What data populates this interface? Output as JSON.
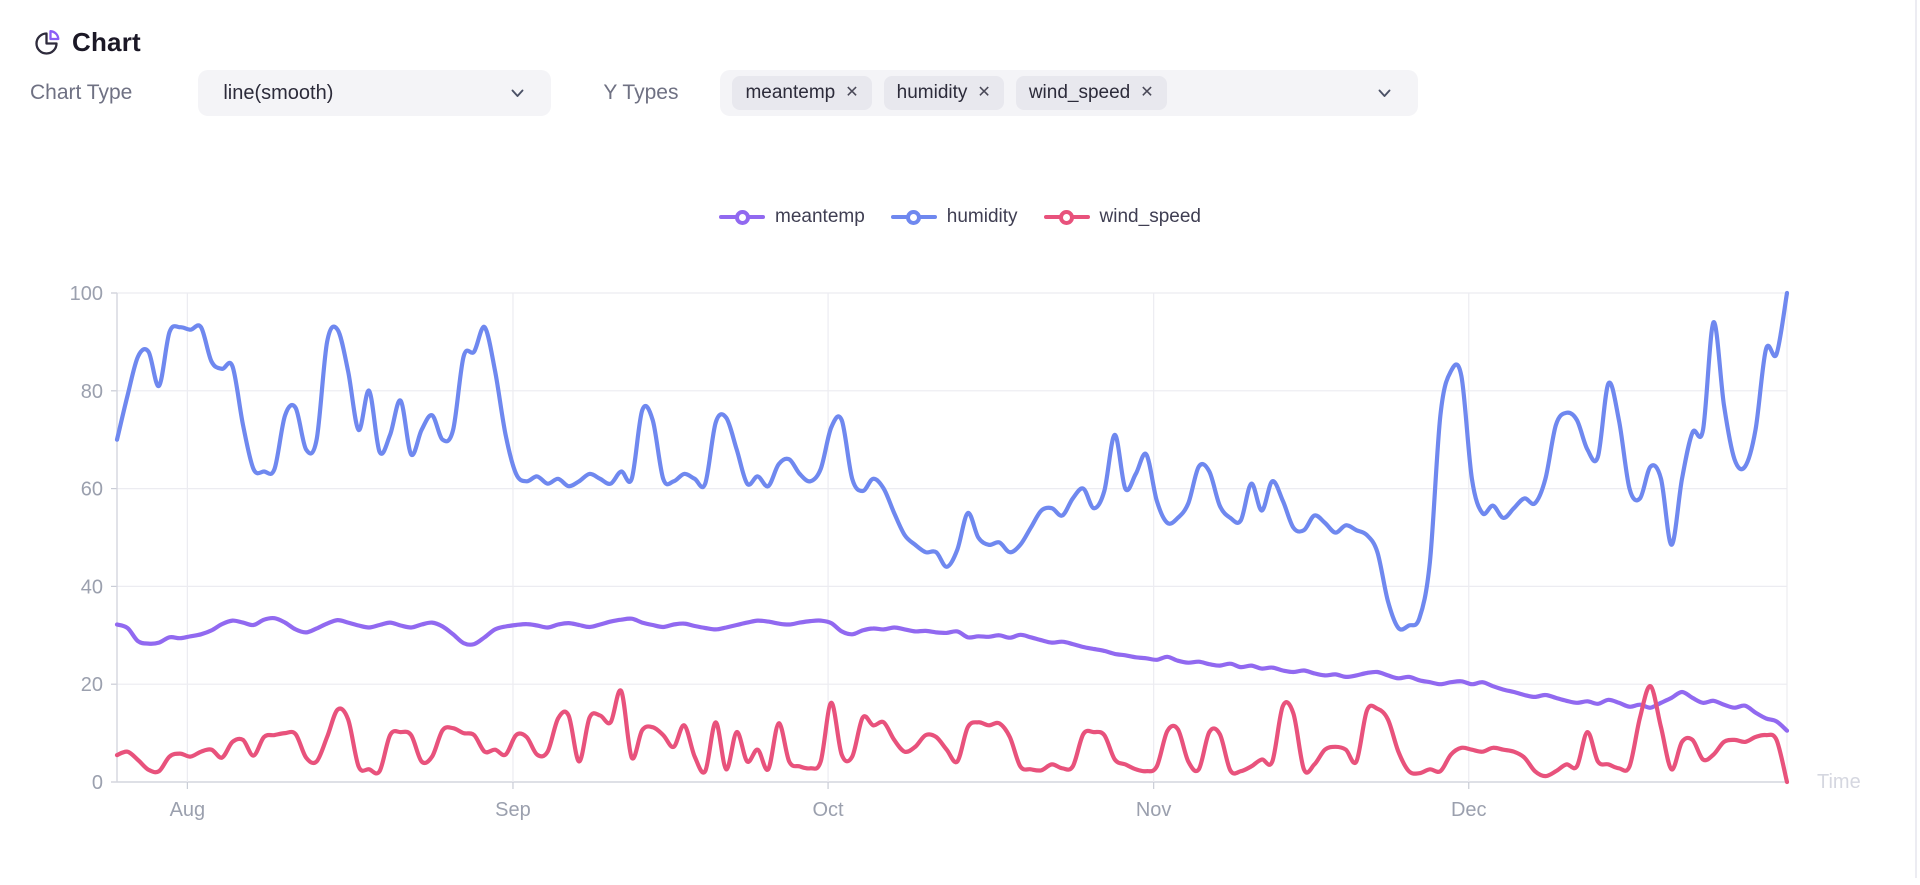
{
  "header": {
    "title": "Chart"
  },
  "controls": {
    "chart_type_label": "Chart Type",
    "chart_type_value": "line(smooth)",
    "y_types_label": "Y Types",
    "remove_glyph": "✕",
    "y_tags": [
      {
        "label": "meantemp"
      },
      {
        "label": "humidity"
      },
      {
        "label": "wind_speed"
      }
    ]
  },
  "legend": {
    "items": [
      {
        "label": "meantemp",
        "color": "#9169f0"
      },
      {
        "label": "humidity",
        "color": "#6f88ef"
      },
      {
        "label": "wind_speed",
        "color": "#e8527c"
      }
    ]
  },
  "chart_data": {
    "type": "line",
    "smooth": true,
    "title": "",
    "xlabel": "Time",
    "ylabel": "",
    "x_desc": "daily values, 2016-07-25 through 2017-01-01 (160 points)",
    "ylim": [
      0,
      100
    ],
    "yticks": [
      0,
      20,
      40,
      60,
      80,
      100
    ],
    "xticks": [
      {
        "label": "Aug",
        "day": 6.7
      },
      {
        "label": "Sep",
        "day": 37.7
      },
      {
        "label": "Oct",
        "day": 67.7
      },
      {
        "label": "Nov",
        "day": 98.7
      },
      {
        "label": "Dec",
        "day": 128.7
      }
    ],
    "grid": true,
    "legend_position": "top-center",
    "series": [
      {
        "name": "meantemp",
        "color": "#9169f0",
        "values": [
          32.2,
          31.5,
          28.8,
          28.3,
          28.5,
          29.6,
          29.4,
          29.8,
          30.2,
          31,
          32.3,
          33,
          32.6,
          32.1,
          33.2,
          33.5,
          32.6,
          31.2,
          30.6,
          31.4,
          32.4,
          33.1,
          32.6,
          32,
          31.6,
          32.1,
          32.6,
          32,
          31.6,
          32.2,
          32.6,
          31.8,
          30.2,
          28.4,
          28.2,
          29.6,
          31.2,
          31.8,
          32.1,
          32.3,
          32,
          31.6,
          32.2,
          32.5,
          32.1,
          31.7,
          32.2,
          32.8,
          33.2,
          33.4,
          32.6,
          32.1,
          31.7,
          32.2,
          32.4,
          31.9,
          31.5,
          31.2,
          31.6,
          32.1,
          32.6,
          33,
          32.8,
          32.4,
          32.2,
          32.6,
          32.9,
          33,
          32.5,
          30.8,
          30.2,
          31,
          31.4,
          31.2,
          31.6,
          31.2,
          30.8,
          30.9,
          30.6,
          30.5,
          30.8,
          29.6,
          29.8,
          29.7,
          30,
          29.5,
          30.1,
          29.6,
          29,
          28.5,
          28.7,
          28.2,
          27.6,
          27.2,
          26.8,
          26.2,
          25.9,
          25.5,
          25.3,
          25,
          25.6,
          24.8,
          24.4,
          24.6,
          24.1,
          23.8,
          24.2,
          23.5,
          23.8,
          23.2,
          23.4,
          22.8,
          22.5,
          22.8,
          22.2,
          21.8,
          22,
          21.5,
          21.8,
          22.3,
          22.5,
          21.8,
          21.2,
          21.5,
          20.8,
          20.4,
          20,
          20.4,
          20.6,
          20,
          20.4,
          19.6,
          18.9,
          18.4,
          17.8,
          17.4,
          17.8,
          17.2,
          16.6,
          16.2,
          16.5,
          16,
          16.8,
          16.2,
          15.4,
          15.8,
          15.2,
          16.2,
          17.2,
          18.4,
          17.2,
          16.2,
          16.6,
          15.8,
          15.2,
          15.6,
          14.2,
          13,
          12.4,
          10.5
        ]
      },
      {
        "name": "humidity",
        "color": "#6f88ef",
        "values": [
          70,
          79,
          87,
          88,
          81,
          92,
          93,
          92.5,
          93,
          86,
          84.5,
          85,
          73,
          64,
          63.5,
          64,
          75,
          76.5,
          68,
          70,
          90,
          92.5,
          84,
          72,
          80,
          67.5,
          71,
          78,
          67,
          72,
          75,
          70,
          72,
          87,
          88,
          93,
          84,
          71,
          63,
          61.5,
          62.5,
          61,
          62,
          60.5,
          61.5,
          63,
          62,
          61,
          63.5,
          62,
          76,
          74,
          62,
          61.5,
          63,
          62,
          61,
          73.5,
          74.5,
          68,
          61,
          62.5,
          60.5,
          65,
          66,
          63,
          61.5,
          64,
          72.5,
          74,
          62,
          59.5,
          62,
          60,
          55,
          50.5,
          48.5,
          47,
          47,
          44,
          47.5,
          55,
          50,
          48.5,
          49,
          47,
          48.5,
          52,
          55.5,
          56,
          54.5,
          58,
          60,
          56,
          59.5,
          71,
          60,
          63,
          67,
          57.5,
          53,
          54,
          57,
          64.5,
          63.5,
          56.5,
          54,
          53.5,
          61,
          55.5,
          61.5,
          57.5,
          52,
          51.5,
          54.5,
          53,
          51,
          52.5,
          51.5,
          50.5,
          47,
          37,
          31.5,
          32,
          33.5,
          45,
          75,
          84,
          83,
          62,
          55,
          56.5,
          54,
          56,
          58,
          57,
          62,
          73,
          75.5,
          74,
          68,
          66.5,
          81.5,
          74,
          60,
          58,
          64.5,
          62,
          48.5,
          62,
          71.5,
          72,
          94,
          77,
          66,
          64.5,
          72,
          88.5,
          87.5,
          100
        ]
      },
      {
        "name": "wind_speed",
        "color": "#e8527c",
        "values": [
          5.5,
          6.2,
          4.5,
          2.5,
          2.2,
          5.2,
          5.8,
          5.2,
          6.2,
          6.6,
          5,
          8.2,
          8.6,
          5.4,
          9.2,
          9.6,
          10,
          9.8,
          5,
          4.2,
          9.2,
          14.8,
          12.8,
          3.2,
          2.6,
          2.2,
          9.6,
          10.2,
          9.6,
          4.2,
          5.2,
          10.6,
          11,
          10,
          9.6,
          6.2,
          6.6,
          5.6,
          9.6,
          9.2,
          5.6,
          6.2,
          13,
          13.6,
          4.2,
          13.2,
          13.6,
          12.2,
          18.6,
          5,
          10.6,
          11.2,
          9.6,
          7.2,
          11.6,
          5.2,
          2.2,
          12.2,
          2.6,
          10.2,
          4.2,
          6.6,
          2.6,
          12,
          4.2,
          3.2,
          2.8,
          4.2,
          16.2,
          5.6,
          5.2,
          13.2,
          11.6,
          12.2,
          8.6,
          6.2,
          7.2,
          9.6,
          9.2,
          6.6,
          4.2,
          11.2,
          12.2,
          11.6,
          12,
          9.2,
          3.2,
          2.6,
          2.4,
          3.6,
          2.8,
          3.2,
          9.8,
          10.2,
          9.6,
          4.6,
          3.6,
          2.6,
          2.2,
          3.2,
          10.4,
          10.8,
          4.2,
          2.6,
          10.2,
          9.8,
          2.4,
          2.2,
          3.2,
          4.6,
          4.2,
          15.5,
          14,
          2.6,
          3.6,
          6.6,
          7.2,
          6.6,
          4.2,
          14.6,
          15,
          12.8,
          6.2,
          2.2,
          1.8,
          2.6,
          2.2,
          5.6,
          7,
          6.6,
          6.2,
          7,
          6.6,
          6.2,
          5,
          2.2,
          1.2,
          2.2,
          3.6,
          3.2,
          10.2,
          4.2,
          3.6,
          2.8,
          3.2,
          13.2,
          19.6,
          11.2,
          2.6,
          8.2,
          8.6,
          4.6,
          5.6,
          8.2,
          8.6,
          8.2,
          9.2,
          9.6,
          8.6,
          0
        ]
      }
    ]
  },
  "colors": {
    "grid_line": "#ececf1",
    "axis_line": "#d4d6de",
    "tick_mark": "#c9ccd6",
    "axis_label": "#9ba0ae",
    "time_label": "#d5d7e0"
  }
}
